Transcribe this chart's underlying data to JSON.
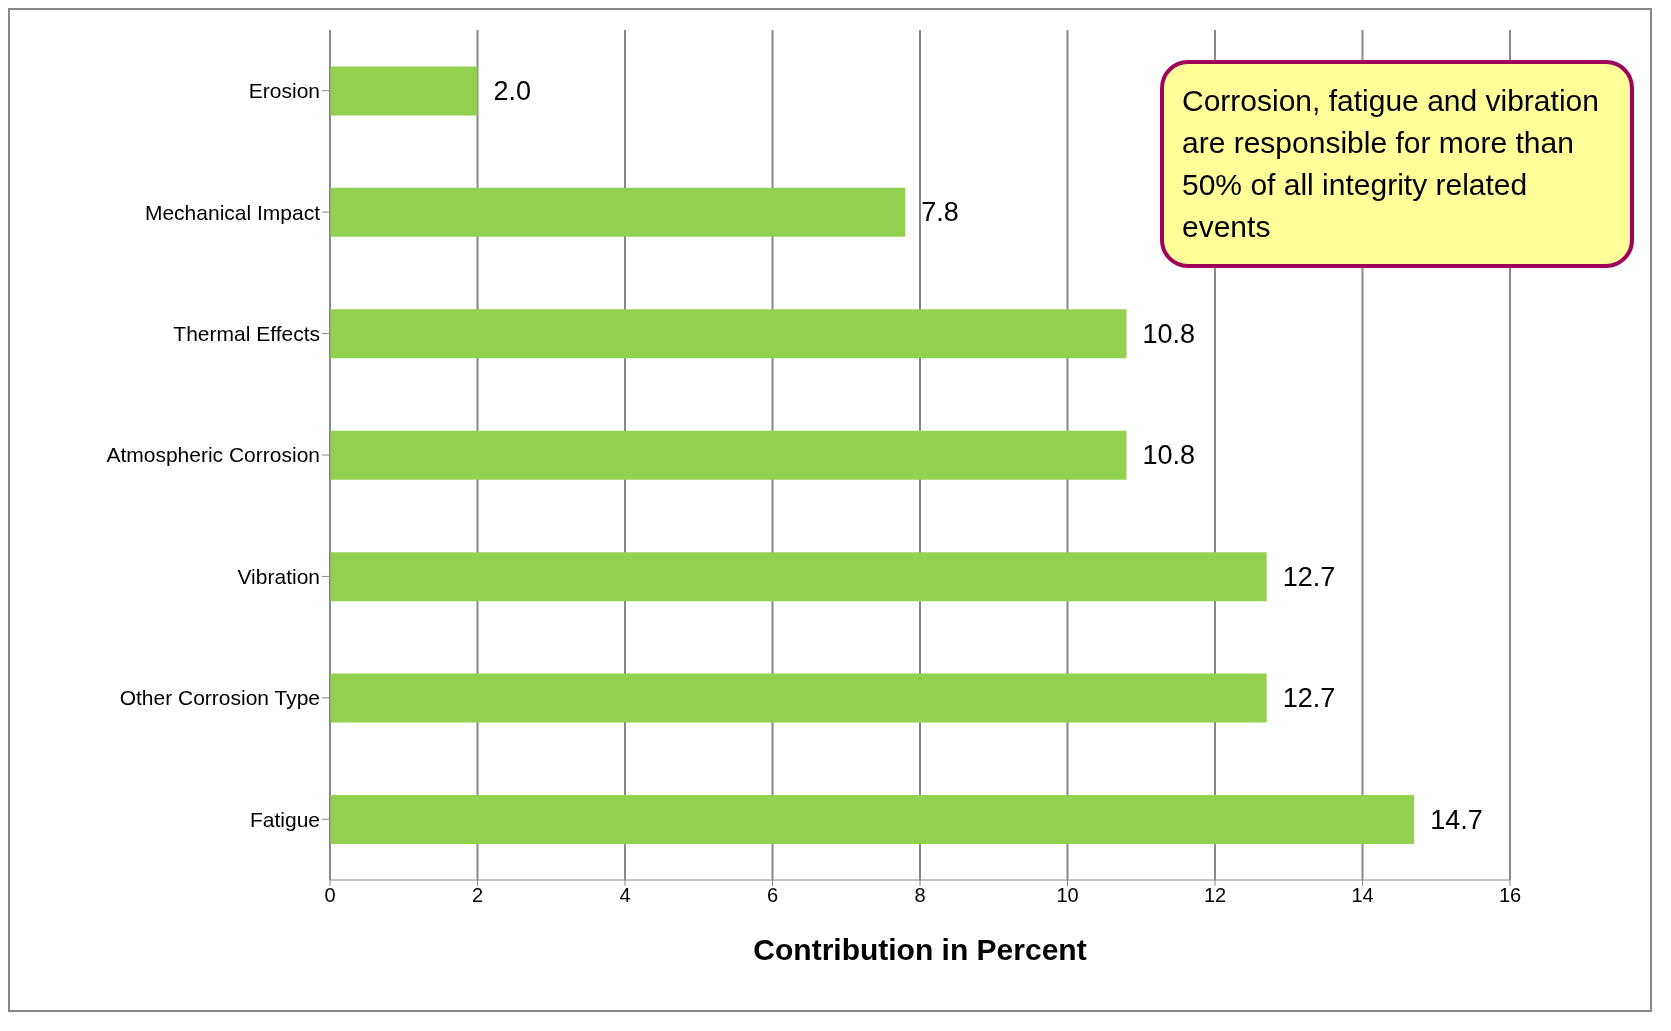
{
  "chart_data": {
    "type": "bar",
    "orientation": "horizontal",
    "xlabel": "Contribution in Percent",
    "categories": [
      "Erosion",
      "Mechanical Impact",
      "Thermal Effects",
      "Atmospheric Corrosion",
      "Vibration",
      "Other Corrosion Type",
      "Fatigue"
    ],
    "values": [
      2.0,
      7.8,
      10.8,
      10.8,
      12.7,
      12.7,
      14.7
    ],
    "value_labels": [
      "2.0",
      "7.8",
      "10.8",
      "10.8",
      "12.7",
      "12.7",
      "14.7"
    ],
    "color": "#92d050",
    "xlim": [
      0,
      16
    ],
    "xticks": [
      0,
      2,
      4,
      6,
      8,
      10,
      12,
      14,
      16
    ],
    "grid": "x",
    "legend": false,
    "annotations": [
      "Corrosion, fatigue and vibration are responsible for more than 50% of all integrity related events"
    ]
  }
}
